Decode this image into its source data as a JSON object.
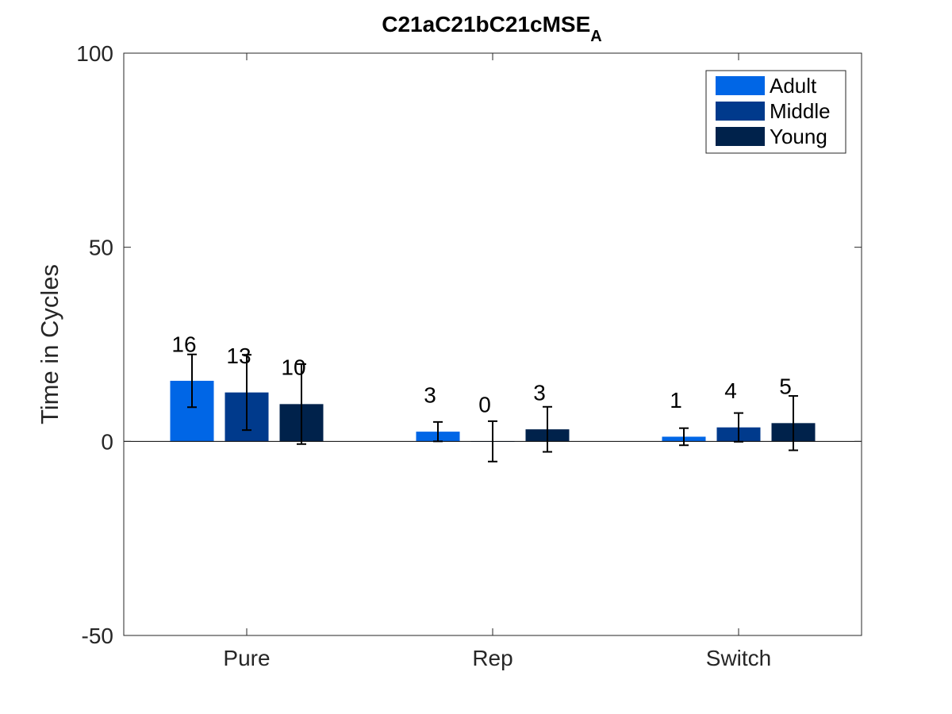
{
  "chart_data": {
    "type": "bar",
    "title": "C21aC21bC21cMSE",
    "title_subscript": "A",
    "xlabel": "",
    "ylabel": "Time in Cycles",
    "ylim": [
      -50,
      100
    ],
    "yticks": [
      -50,
      0,
      50,
      100
    ],
    "categories": [
      "Pure",
      "Rep",
      "Switch"
    ],
    "series": [
      {
        "name": "Adult",
        "color": "#0066E6",
        "values": [
          15.6,
          2.5,
          1.2
        ],
        "error": [
          6.8,
          2.5,
          2.2
        ],
        "labels": [
          "16",
          "3",
          "1"
        ]
      },
      {
        "name": "Middle",
        "color": "#003A8C",
        "values": [
          12.6,
          0.0,
          3.6
        ],
        "error": [
          9.7,
          5.2,
          3.7
        ],
        "labels": [
          "13",
          "0",
          "4"
        ]
      },
      {
        "name": "Young",
        "color": "#00224B",
        "values": [
          9.6,
          3.1,
          4.7
        ],
        "error": [
          10.3,
          5.8,
          7.0
        ],
        "labels": [
          "10",
          "3",
          "5"
        ]
      }
    ],
    "legend": "top-right",
    "grid": false,
    "zero_line": true
  }
}
